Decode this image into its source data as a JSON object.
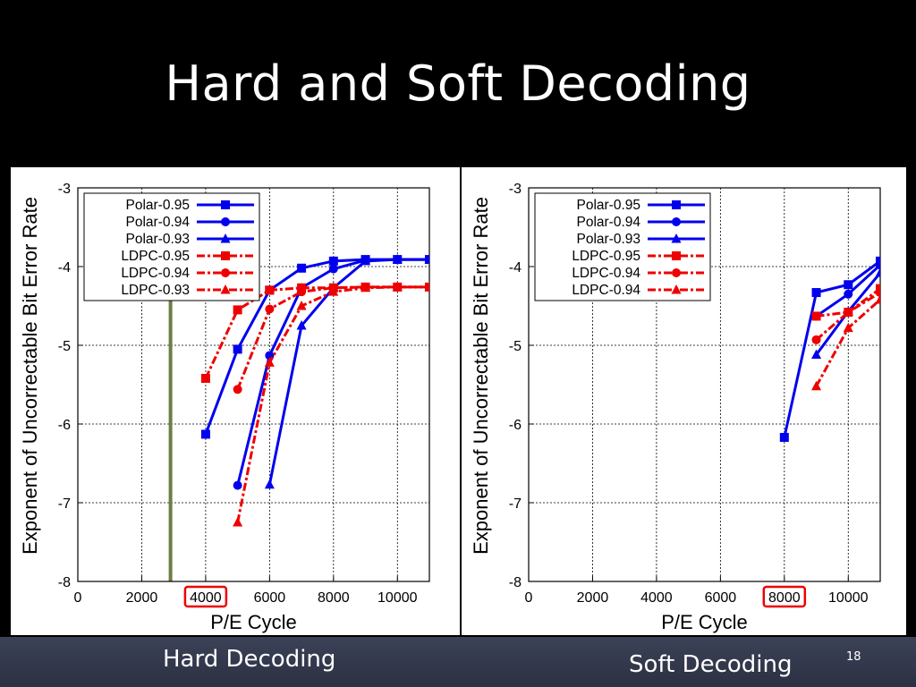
{
  "slide": {
    "title": "Hard and Soft Decoding",
    "page_number": "18",
    "background": "#000000",
    "footer_color": "#363b4f"
  },
  "captions": {
    "hard": "Hard Decoding",
    "soft": "Soft Decoding"
  },
  "chart_data": [
    {
      "type": "line",
      "xlabel": "P/E Cycle",
      "ylabel": "Exponent of Uncorrectable Bit Error Rate",
      "xlim": [
        0,
        11000
      ],
      "ylim": [
        -8,
        -3
      ],
      "xticks": [
        "0",
        "2000",
        "4000",
        "6000",
        "8000",
        "10000"
      ],
      "yticks": [
        "-8",
        "-7",
        "-6",
        "-5",
        "-4",
        "-3"
      ],
      "grid": true,
      "legend": "top-left",
      "highlighted_tick": "4000",
      "highlight_color": "#ee0000",
      "vertical_marker_x": 2900,
      "vertical_marker_color": "#6b7f45",
      "series": [
        {
          "name": "Polar-0.95",
          "color": "#0000ee",
          "marker": "square",
          "dash": "solid",
          "x": [
            4000,
            5000,
            6000,
            7000,
            8000,
            9000,
            10000,
            11000
          ],
          "y": [
            -6.13,
            -5.05,
            -4.3,
            -4.02,
            -3.93,
            -3.91,
            -3.91,
            -3.91
          ]
        },
        {
          "name": "Polar-0.94",
          "color": "#0000ee",
          "marker": "circle",
          "dash": "solid",
          "x": [
            5000,
            6000,
            7000,
            8000,
            9000,
            10000,
            11000
          ],
          "y": [
            -6.78,
            -5.13,
            -4.27,
            -4.03,
            -3.92,
            -3.91,
            -3.91
          ]
        },
        {
          "name": "Polar-0.93",
          "color": "#0000ee",
          "marker": "triangle",
          "dash": "solid",
          "x": [
            6000,
            7000,
            8000,
            9000,
            10000,
            11000
          ],
          "y": [
            -6.77,
            -4.75,
            -4.27,
            -3.93,
            -3.91,
            -3.91
          ]
        },
        {
          "name": "LDPC-0.95",
          "color": "#ee0000",
          "marker": "square",
          "dash": "dashdot",
          "x": [
            4000,
            5000,
            6000,
            7000,
            8000,
            9000,
            10000,
            11000
          ],
          "y": [
            -5.42,
            -4.55,
            -4.3,
            -4.27,
            -4.27,
            -4.26,
            -4.26,
            -4.26
          ]
        },
        {
          "name": "LDPC-0.94",
          "color": "#ee0000",
          "marker": "circle",
          "dash": "dashdot",
          "x": [
            5000,
            6000,
            7000,
            8000,
            9000,
            10000,
            11000
          ],
          "y": [
            -5.56,
            -4.54,
            -4.32,
            -4.27,
            -4.26,
            -4.26,
            -4.26
          ]
        },
        {
          "name": "LDPC-0.93",
          "color": "#ee0000",
          "marker": "triangle",
          "dash": "dashdot",
          "x": [
            5000,
            6000,
            7000,
            8000,
            9000,
            10000,
            11000
          ],
          "y": [
            -7.25,
            -5.22,
            -4.5,
            -4.32,
            -4.27,
            -4.26,
            -4.26
          ]
        }
      ]
    },
    {
      "type": "line",
      "xlabel": "P/E Cycle",
      "ylabel": "Exponent of Uncorrectable Bit Error Rate",
      "xlim": [
        0,
        11000
      ],
      "ylim": [
        -8,
        -3
      ],
      "xticks": [
        "0",
        "2000",
        "4000",
        "6000",
        "8000",
        "10000"
      ],
      "yticks": [
        "-8",
        "-7",
        "-6",
        "-5",
        "-4",
        "-3"
      ],
      "grid": true,
      "legend": "top-left",
      "highlighted_tick": "8000",
      "highlight_color": "#ee0000",
      "series": [
        {
          "name": "Polar-0.95",
          "color": "#0000ee",
          "marker": "square",
          "dash": "solid",
          "x": [
            8000,
            9000,
            10000,
            11000
          ],
          "y": [
            -6.17,
            -4.33,
            -4.23,
            -3.93
          ]
        },
        {
          "name": "Polar-0.94",
          "color": "#0000ee",
          "marker": "circle",
          "dash": "solid",
          "x": [
            9000,
            10000,
            11000
          ],
          "y": [
            -4.63,
            -4.35,
            -3.98
          ]
        },
        {
          "name": "Polar-0.93",
          "color": "#0000ee",
          "marker": "triangle",
          "dash": "solid",
          "x": [
            9000,
            10000,
            11000
          ],
          "y": [
            -5.12,
            -4.57,
            -4.08
          ]
        },
        {
          "name": "LDPC-0.95",
          "color": "#ee0000",
          "marker": "square",
          "dash": "dashdot",
          "x": [
            9000,
            10000,
            11000
          ],
          "y": [
            -4.63,
            -4.58,
            -4.28
          ]
        },
        {
          "name": "LDPC-0.94",
          "color": "#ee0000",
          "marker": "circle",
          "dash": "dashdot",
          "x": [
            9000,
            10000,
            11000
          ],
          "y": [
            -4.93,
            -4.58,
            -4.33
          ]
        },
        {
          "name": "LDPC-0.94",
          "color": "#ee0000",
          "marker": "triangle",
          "dash": "dashdot",
          "x": [
            9000,
            10000,
            11000
          ],
          "y": [
            -5.52,
            -4.78,
            -4.42
          ]
        }
      ]
    }
  ]
}
